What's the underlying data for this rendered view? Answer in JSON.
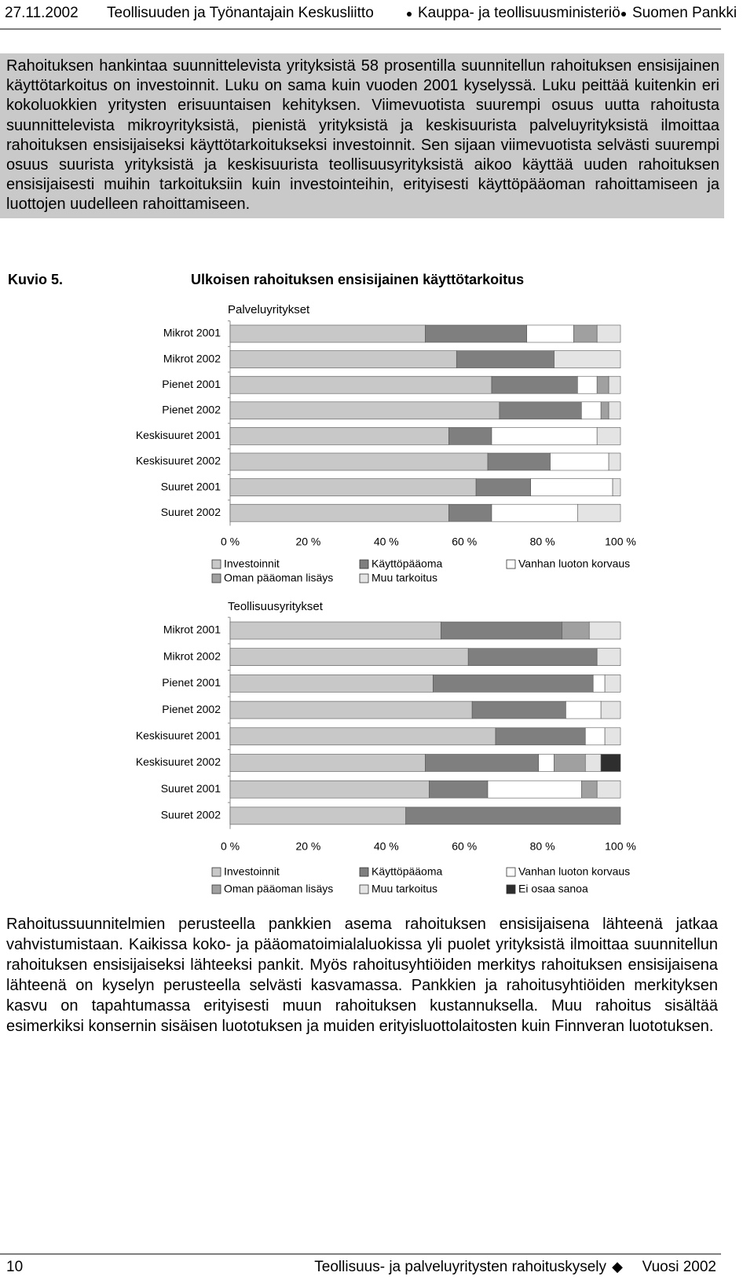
{
  "header": {
    "date": "27.11.2002",
    "organizations": [
      "Teollisuuden ja Työnantajain Keskusliitto",
      "Kauppa- ja teollisuusministeriö",
      "Suomen Pankki"
    ]
  },
  "paragraphs": [
    "Rahoituksen hankintaa suunnittelevista yrityksistä 58 prosentilla suunnitellun rahoituksen ensisijainen käyttötarkoitus on investoinnit. Luku on sama kuin vuoden 2001 kyselyssä. Luku peittää kuitenkin eri kokoluokkien yritysten erisuuntaisen kehityksen. Viimevuotista suurempi osuus uutta rahoitusta suunnittelevista mikroyrityksistä, pienistä yrityksistä ja keskisuurista palveluyrityksistä ilmoittaa rahoituksen ensisijaiseksi käyttötarkoitukseksi investoinnit. Sen sijaan viimevuotista selvästi suurempi osuus suurista yrityksistä ja keskisuurista teollisuusyrityksistä aikoo käyttää uuden rahoituksen ensisijaisesti muihin tarkoituksiin kuin investointeihin, erityisesti käyttöpääoman rahoittamiseen ja luottojen uudelleen rahoittamiseen.",
    "Rahoitussuunnitelmien perusteella pankkien asema rahoituksen ensisijaisena lähteenä jatkaa vahvistumistaan. Kaikissa koko- ja pääomatoimialaluokissa yli puolet yrityksistä ilmoittaa suunnitellun rahoituksen ensisijaiseksi lähteeksi pankit. Myös rahoitusyhtiöiden merkitys rahoituksen ensisijaisena lähteenä on kyselyn perusteella selvästi kasvamassa. Pankkien ja rahoitusyhtiöiden merkityksen kasvu on tapahtumassa erityisesti muun rahoituksen kustannuksella. Muu rahoitus sisältää esimerkiksi konsernin sisäisen luototuksen ja muiden erityisluottolaitosten kuin Finnveran luototuksen."
  ],
  "figure": {
    "label": "Kuvio 5.",
    "title": "Ulkoisen rahoituksen ensisijainen käyttötarkoitus"
  },
  "chart_data": [
    {
      "type": "stacked-bar-horizontal",
      "subtitle": "Palveluyritykset",
      "categories": [
        "Mikrot 2001",
        "Mikrot 2002",
        "Pienet 2001",
        "Pienet 2002",
        "Keskisuuret 2001",
        "Keskisuuret 2002",
        "Suuret 2001",
        "Suuret 2002"
      ],
      "series": [
        {
          "name": "Investoinnit",
          "color": "#c8c8c8",
          "values": [
            50,
            58,
            67,
            69,
            56,
            66,
            63,
            56
          ]
        },
        {
          "name": "Käyttöpääoma",
          "color": "#7f7f7f",
          "values": [
            26,
            25,
            22,
            21,
            11,
            16,
            14,
            11
          ]
        },
        {
          "name": "Vanhan luoton korvaus",
          "color": "#ffffff",
          "values": [
            12,
            0,
            5,
            5,
            27,
            15,
            21,
            22
          ]
        },
        {
          "name": "Oman pääoman lisäys",
          "color": "#a0a0a0",
          "values": [
            6,
            0,
            3,
            2,
            0,
            0,
            0,
            0
          ]
        },
        {
          "name": "Muu tarkoitus",
          "color": "#e4e4e4",
          "values": [
            6,
            17,
            3,
            3,
            6,
            3,
            2,
            11
          ]
        }
      ],
      "xlim": [
        0,
        100
      ],
      "xticks": [
        {
          "value": 0,
          "label": "0 %"
        },
        {
          "value": 20,
          "label": "20 %"
        },
        {
          "value": 40,
          "label": "40 %"
        },
        {
          "value": 60,
          "label": "60 %"
        },
        {
          "value": 80,
          "label": "80 %"
        },
        {
          "value": 100,
          "label": "100 %"
        }
      ]
    },
    {
      "type": "stacked-bar-horizontal",
      "subtitle": "Teollisuusyritykset",
      "categories": [
        "Mikrot 2001",
        "Mikrot 2002",
        "Pienet 2001",
        "Pienet 2002",
        "Keskisuuret 2001",
        "Keskisuuret 2002",
        "Suuret 2001",
        "Suuret 2002"
      ],
      "series": [
        {
          "name": "Investoinnit",
          "color": "#c8c8c8",
          "values": [
            54,
            61,
            52,
            62,
            68,
            50,
            51,
            45
          ]
        },
        {
          "name": "Käyttöpääoma",
          "color": "#7f7f7f",
          "values": [
            31,
            33,
            41,
            24,
            23,
            29,
            15,
            55
          ]
        },
        {
          "name": "Vanhan luoton korvaus",
          "color": "#ffffff",
          "values": [
            0,
            0,
            3,
            9,
            5,
            4,
            24,
            0
          ]
        },
        {
          "name": "Oman pääoman lisäys",
          "color": "#a0a0a0",
          "values": [
            7,
            0,
            0,
            0,
            0,
            8,
            4,
            0
          ]
        },
        {
          "name": "Muu tarkoitus",
          "color": "#e4e4e4",
          "values": [
            8,
            6,
            4,
            5,
            4,
            4,
            6,
            0
          ]
        },
        {
          "name": "Ei osaa sanoa",
          "color": "#2e2e2e",
          "values": [
            0,
            0,
            0,
            0,
            0,
            5,
            0,
            0
          ]
        }
      ],
      "xlim": [
        0,
        100
      ],
      "xticks": [
        {
          "value": 0,
          "label": "0 %"
        },
        {
          "value": 20,
          "label": "20 %"
        },
        {
          "value": 40,
          "label": "40 %"
        },
        {
          "value": 60,
          "label": "60 %"
        },
        {
          "value": 80,
          "label": "80 %"
        },
        {
          "value": 100,
          "label": "100 %"
        }
      ]
    }
  ],
  "footer": {
    "page": "10",
    "publication": "Teollisuus- ja palveluyritysten rahoituskysely",
    "year": "Vuosi 2002"
  }
}
